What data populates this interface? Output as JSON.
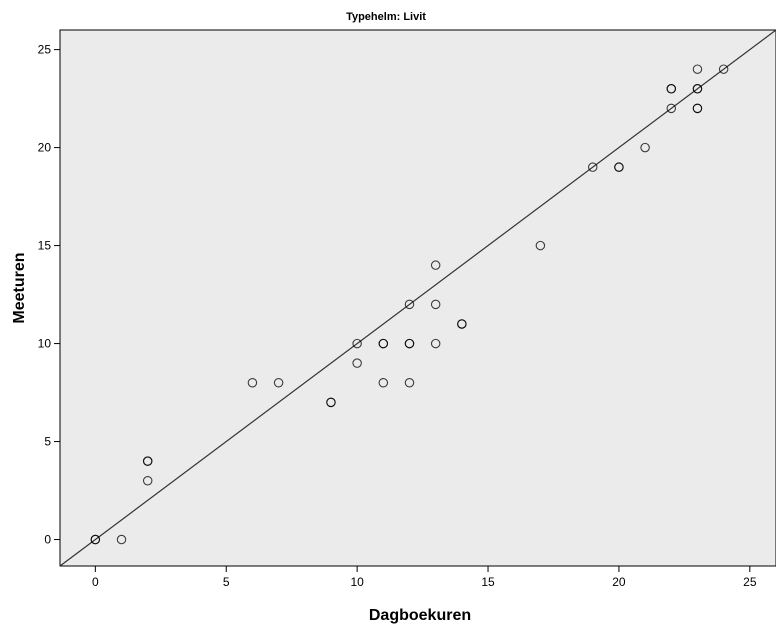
{
  "chart_data": {
    "type": "scatter",
    "title": "Typehelm: Livit",
    "xlabel": "Dagboekuren",
    "ylabel": "Meeturen",
    "xlim": [
      -1.35,
      26
    ],
    "ylim": [
      -1.35,
      26
    ],
    "xticks": [
      0,
      5,
      10,
      15,
      20,
      25
    ],
    "yticks": [
      0,
      5,
      10,
      15,
      20,
      25
    ],
    "grid": false,
    "plot_background": "#ebebeb",
    "marker_color": "#000000",
    "line_color": "#333333",
    "points": [
      {
        "x": 0,
        "y": 0
      },
      {
        "x": 0,
        "y": 0
      },
      {
        "x": 1,
        "y": 0
      },
      {
        "x": 2,
        "y": 4
      },
      {
        "x": 2,
        "y": 4
      },
      {
        "x": 2,
        "y": 3
      },
      {
        "x": 6,
        "y": 8
      },
      {
        "x": 7,
        "y": 8
      },
      {
        "x": 9,
        "y": 7
      },
      {
        "x": 9,
        "y": 7
      },
      {
        "x": 10,
        "y": 10
      },
      {
        "x": 10,
        "y": 9
      },
      {
        "x": 11,
        "y": 10
      },
      {
        "x": 11,
        "y": 10
      },
      {
        "x": 11,
        "y": 8
      },
      {
        "x": 12,
        "y": 12
      },
      {
        "x": 12,
        "y": 10
      },
      {
        "x": 12,
        "y": 10
      },
      {
        "x": 12,
        "y": 8
      },
      {
        "x": 13,
        "y": 14
      },
      {
        "x": 13,
        "y": 12
      },
      {
        "x": 13,
        "y": 10
      },
      {
        "x": 14,
        "y": 11
      },
      {
        "x": 14,
        "y": 11
      },
      {
        "x": 17,
        "y": 15
      },
      {
        "x": 19,
        "y": 19
      },
      {
        "x": 20,
        "y": 19
      },
      {
        "x": 20,
        "y": 19
      },
      {
        "x": 21,
        "y": 20
      },
      {
        "x": 22,
        "y": 23
      },
      {
        "x": 22,
        "y": 23
      },
      {
        "x": 22,
        "y": 22
      },
      {
        "x": 23,
        "y": 24
      },
      {
        "x": 23,
        "y": 23
      },
      {
        "x": 23,
        "y": 23
      },
      {
        "x": 23,
        "y": 22
      },
      {
        "x": 23,
        "y": 22
      },
      {
        "x": 24,
        "y": 24
      }
    ],
    "reference_line": {
      "type": "y=x"
    }
  }
}
